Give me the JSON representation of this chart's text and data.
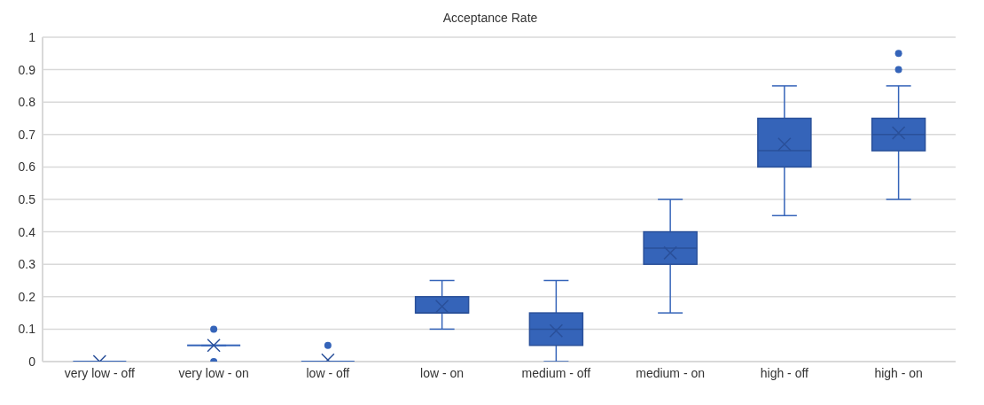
{
  "chart_data": {
    "type": "box",
    "title": "Acceptance Rate",
    "categories": [
      "very low - off",
      "very low - on",
      "low - off",
      "low - on",
      "medium - off",
      "medium - on",
      "high - off",
      "high - on"
    ],
    "boxes": [
      {
        "low": 0,
        "q1": 0,
        "median": 0,
        "q3": 0,
        "high": 0,
        "mean": 0
      },
      {
        "low": 0.05,
        "q1": 0.05,
        "median": 0.05,
        "q3": 0.05,
        "high": 0.05,
        "mean": 0.05,
        "outliers": [
          0,
          0.1
        ]
      },
      {
        "low": 0,
        "q1": 0,
        "median": 0,
        "q3": 0,
        "high": 0,
        "mean": 0.005,
        "outliers": [
          0.05
        ]
      },
      {
        "low": 0.1,
        "q1": 0.15,
        "median": 0.15,
        "q3": 0.2,
        "high": 0.25,
        "mean": 0.17
      },
      {
        "low": 0,
        "q1": 0.05,
        "median": 0.1,
        "q3": 0.15,
        "high": 0.25,
        "mean": 0.095
      },
      {
        "low": 0.15,
        "q1": 0.3,
        "median": 0.35,
        "q3": 0.4,
        "high": 0.5,
        "mean": 0.335
      },
      {
        "low": 0.45,
        "q1": 0.6,
        "median": 0.65,
        "q3": 0.75,
        "high": 0.85,
        "mean": 0.67
      },
      {
        "low": 0.5,
        "q1": 0.65,
        "median": 0.7,
        "q3": 0.75,
        "high": 0.85,
        "mean": 0.705,
        "outliers": [
          0.9,
          0.95
        ]
      }
    ],
    "color": "#3564b9",
    "ylim": [
      0,
      1
    ],
    "yticks": [
      0,
      0.1,
      0.2,
      0.3,
      0.4,
      0.5,
      0.6,
      0.7,
      0.8,
      0.9,
      1
    ],
    "grid": "y"
  }
}
